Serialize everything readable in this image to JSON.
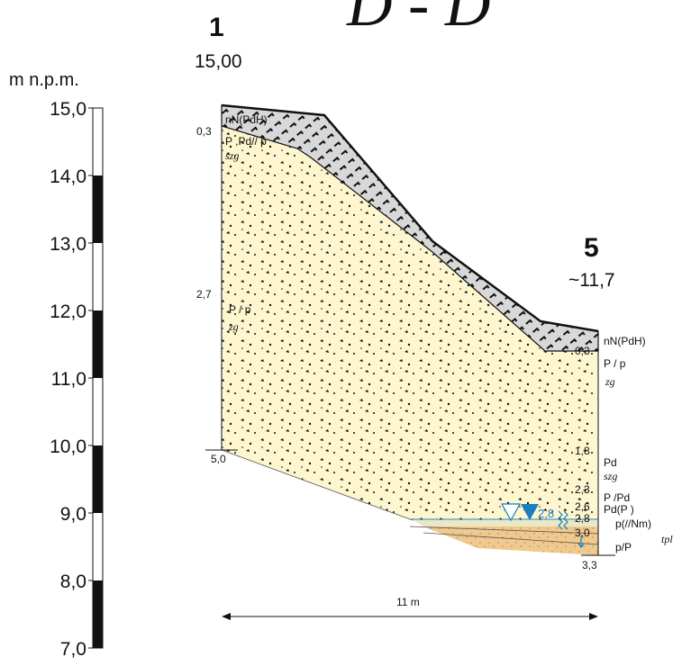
{
  "title": "D - D'",
  "axis": {
    "label": "m n.p.m.",
    "ticks": [
      {
        "value": 15.0,
        "label": "15,0"
      },
      {
        "value": 14.0,
        "label": "14,0"
      },
      {
        "value": 13.0,
        "label": "13,0"
      },
      {
        "value": 12.0,
        "label": "12,0"
      },
      {
        "value": 11.0,
        "label": "11,0"
      },
      {
        "value": 10.0,
        "label": "10,0"
      },
      {
        "value": 9.0,
        "label": "9,0"
      },
      {
        "value": 8.0,
        "label": "8,0"
      },
      {
        "value": 7.0,
        "label": "7,0"
      }
    ]
  },
  "boreholes": [
    {
      "number": "1",
      "elevation": "15,00",
      "depths": [
        "0,3",
        "2,7",
        "5,0"
      ],
      "soils": [
        "nN(PdH)",
        "P  ,Pd//  p",
        "szg",
        "P  /  p",
        "zg"
      ]
    },
    {
      "number": "5",
      "elevation": "~11,7",
      "depths": [
        "0,3",
        "1,8",
        "2,3",
        "2,6",
        "2,8",
        "3,0",
        "3,3"
      ],
      "soils": [
        "nN(PdH)",
        "P  /  p",
        "zg",
        "Pd",
        "szg",
        "P  /Pd",
        "Pd(P  )",
        "p(//Nm)",
        "tpl",
        "p/P"
      ],
      "water_level": "2,8"
    }
  ],
  "distance": "11 m",
  "colors": {
    "fill_sand": "#fdf6cf",
    "fill_mixed": "#ece8c6",
    "fill_clay": "#f0c98e",
    "fill_topsoil": "#d8d8d8",
    "water": "#1a7fc1"
  }
}
